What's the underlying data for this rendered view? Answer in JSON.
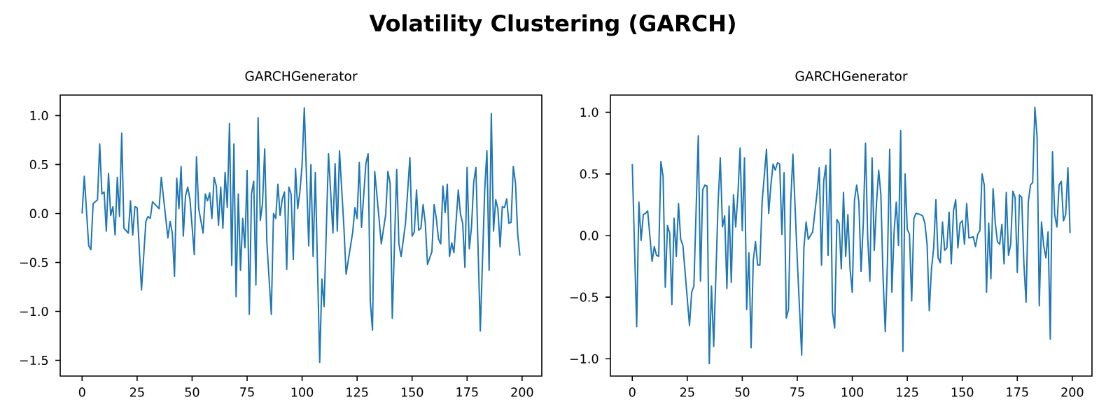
{
  "chart_data": [
    {
      "type": "line",
      "title": "GARCHGenerator",
      "annotations": [
        "Volatility Clustering (GARCH)"
      ],
      "color": "#1f77b4",
      "x": [
        0,
        1,
        3,
        4,
        5,
        7,
        8,
        9,
        10,
        11,
        12,
        13,
        14,
        15,
        16,
        17,
        18,
        19,
        21,
        22,
        23,
        24,
        25,
        27,
        29,
        30,
        31,
        32,
        35,
        36,
        39,
        40,
        41,
        42,
        43,
        44,
        45,
        46,
        47,
        48,
        49,
        51,
        52,
        53,
        55,
        56,
        57,
        58,
        59,
        60,
        61,
        62,
        63,
        64,
        65,
        66,
        67,
        68,
        69,
        70,
        71,
        72,
        73,
        74,
        75,
        76,
        77,
        78,
        79,
        80,
        81,
        82,
        83,
        84,
        86,
        87,
        88,
        89,
        90,
        91,
        92,
        93,
        94,
        95,
        96,
        97,
        98,
        99,
        100,
        101,
        103,
        104,
        105,
        106,
        108,
        109,
        110,
        112,
        114,
        115,
        116,
        117,
        119,
        120,
        123,
        124,
        125,
        126,
        127,
        129,
        130,
        131,
        132,
        133,
        134,
        136,
        138,
        139,
        140,
        141,
        143,
        144,
        145,
        147,
        149,
        150,
        151,
        152,
        153,
        154,
        155,
        156,
        157,
        159,
        160,
        161,
        162,
        163,
        164,
        165,
        166,
        167,
        168,
        169,
        171,
        172,
        173,
        174,
        175,
        176,
        177,
        178,
        179,
        181,
        183,
        184,
        185,
        186,
        187,
        188,
        189,
        190,
        191,
        192,
        193,
        194,
        195,
        196,
        197,
        198,
        199
      ],
      "values": [
        0.0,
        0.38,
        -0.33,
        -0.37,
        0.1,
        0.14,
        0.71,
        0.2,
        0.22,
        -0.18,
        0.41,
        -0.02,
        0.07,
        -0.22,
        0.37,
        -0.03,
        0.82,
        -0.15,
        -0.2,
        0.13,
        -0.22,
        0.07,
        0.06,
        -0.78,
        -0.08,
        -0.03,
        -0.05,
        0.12,
        0.05,
        0.37,
        -0.25,
        -0.08,
        -0.2,
        -0.64,
        0.36,
        0.05,
        0.48,
        -0.23,
        0.18,
        0.27,
        0.15,
        -0.42,
        0.58,
        0.05,
        -0.2,
        0.2,
        0.13,
        0.21,
        -0.05,
        0.37,
        0.28,
        -0.12,
        0.27,
        -0.15,
        0.42,
        0.06,
        0.92,
        -0.53,
        0.71,
        -0.85,
        0.2,
        -0.58,
        -0.05,
        -0.35,
        0.44,
        -1.03,
        0.2,
        0.33,
        -0.73,
        0.98,
        -0.07,
        0.1,
        0.66,
        -0.3,
        -1.03,
        0.0,
        -0.05,
        0.3,
        -0.02,
        0.15,
        0.22,
        -0.57,
        0.27,
        0.2,
        -0.47,
        0.46,
        0.05,
        0.22,
        0.5,
        1.08,
        -0.33,
        0.5,
        -0.44,
        0.42,
        -1.52,
        -0.67,
        -0.95,
        0.61,
        -0.2,
        0.51,
        -0.18,
        0.64,
        -0.14,
        -0.62,
        -0.19,
        0.06,
        -0.05,
        0.52,
        -0.14,
        0.51,
        0.61,
        -0.9,
        -1.19,
        0.43,
        0.19,
        -0.31,
        -0.01,
        0.43,
        0.31,
        -1.07,
        0.45,
        -0.31,
        -0.44,
        -0.1,
        0.57,
        -0.23,
        -0.19,
        0.24,
        -0.17,
        -0.15,
        0.09,
        -0.1,
        -0.52,
        -0.39,
        0.09,
        -0.05,
        -0.26,
        -0.31,
        0.28,
        0.01,
        0.3,
        -0.44,
        -0.3,
        -0.4,
        0.24,
        -0.01,
        -0.1,
        -0.55,
        0.47,
        -0.36,
        -0.14,
        0.32,
        0.47,
        -1.2,
        0.24,
        0.64,
        -0.58,
        1.02,
        -0.18,
        0.14,
        0.05,
        -0.34,
        0.07,
        0.06,
        0.15,
        -0.1,
        -0.09,
        0.48,
        0.31,
        -0.21,
        -0.43
      ],
      "xlim": [
        -9.95,
        208.95
      ],
      "ylim": [
        -1.66,
        1.21
      ],
      "xticks": [
        0,
        25,
        50,
        75,
        100,
        125,
        150,
        175,
        200
      ],
      "yticks": [
        {
          "value": -1.5,
          "label": "−1.5"
        },
        {
          "value": -1,
          "label": "−1.0"
        },
        {
          "value": -0.5,
          "label": "−0.5"
        },
        {
          "value": 0,
          "label": "0.0"
        },
        {
          "value": 0.5,
          "label": "0.5"
        },
        {
          "value": 1,
          "label": "1.0"
        }
      ]
    },
    {
      "type": "line",
      "title": "GARCHGenerator",
      "color": "#1f77b4",
      "x": [
        0,
        2,
        3,
        4,
        5,
        6,
        7,
        9,
        10,
        11,
        12,
        13,
        14,
        15,
        16,
        17,
        18,
        19,
        20,
        21,
        22,
        23,
        26,
        27,
        28,
        30,
        31,
        32,
        33,
        34,
        35,
        36,
        37,
        39,
        40,
        41,
        42,
        43,
        44,
        45,
        46,
        47,
        48,
        49,
        50,
        51,
        52,
        53,
        54,
        55,
        56,
        57,
        58,
        59,
        61,
        62,
        63,
        64,
        65,
        66,
        67,
        68,
        69,
        70,
        71,
        72,
        73,
        75,
        77,
        78,
        79,
        80,
        82,
        84,
        85,
        86,
        87,
        88,
        89,
        90,
        91,
        92,
        93,
        94,
        95,
        96,
        97,
        98,
        99,
        100,
        101,
        102,
        103,
        104,
        105,
        106,
        107,
        108,
        109,
        110,
        111,
        112,
        113,
        114,
        115,
        116,
        117,
        118,
        119,
        120,
        121,
        122,
        123,
        124,
        125,
        126,
        127,
        128,
        129,
        131,
        132,
        133,
        134,
        135,
        136,
        137,
        138,
        139,
        140,
        141,
        142,
        143,
        144,
        145,
        146,
        147,
        148,
        149,
        150,
        151,
        152,
        153,
        155,
        156,
        157,
        158,
        159,
        160,
        161,
        162,
        163,
        164,
        165,
        166,
        167,
        168,
        169,
        170,
        171,
        172,
        173,
        174,
        175,
        176,
        177,
        178,
        179,
        180,
        181,
        182,
        183,
        184,
        185,
        186,
        187,
        188,
        189,
        190,
        191,
        192,
        193,
        194,
        195,
        196,
        197,
        198,
        199
      ],
      "values": [
        0.58,
        -0.74,
        0.27,
        -0.04,
        0.17,
        0.18,
        0.2,
        -0.21,
        -0.09,
        -0.16,
        -0.17,
        0.6,
        0.48,
        -0.42,
        0.08,
        0.02,
        -0.56,
        0.14,
        -0.17,
        0.26,
        -0.03,
        -0.08,
        -0.73,
        -0.46,
        -0.41,
        0.81,
        -0.37,
        0.37,
        0.41,
        0.4,
        -1.04,
        -0.41,
        -0.9,
        0.26,
        0.63,
        0.07,
        0.16,
        -0.43,
        0.24,
        -0.38,
        0.33,
        0.07,
        0.33,
        0.71,
        0.04,
        0.63,
        -0.6,
        -0.14,
        -0.91,
        -0.2,
        -0.05,
        -0.24,
        -0.24,
        0.27,
        0.7,
        0.18,
        0.41,
        0.58,
        0.53,
        0.59,
        0.58,
        0.01,
        0.51,
        -0.67,
        -0.6,
        0.26,
        0.66,
        -0.2,
        -0.97,
        -0.1,
        0.11,
        -0.03,
        0.03,
        0.35,
        0.55,
        -0.24,
        0.44,
        0.57,
        -0.16,
        0.7,
        -0.62,
        -0.75,
        0.13,
        0.1,
        -0.27,
        0.35,
        -0.17,
        0.17,
        -0.27,
        -0.46,
        0.29,
        0.41,
        0.27,
        -0.29,
        0.1,
        0.75,
        -0.01,
        -0.37,
        0.63,
        -0.12,
        0.26,
        0.53,
        0.33,
        -0.35,
        -0.78,
        -0.2,
        0.7,
        -0.46,
        0.03,
        0.27,
        -0.08,
        0.85,
        -0.94,
        0.5,
        0.05,
        0.01,
        -0.53,
        0.14,
        0.18,
        0.17,
        0.16,
        0.1,
        -0.07,
        -0.61,
        -0.27,
        -0.1,
        0.29,
        -0.18,
        -0.22,
        0.11,
        -0.12,
        -0.1,
        0.19,
        -0.23,
        0.2,
        0.29,
        -0.1,
        0.1,
        0.12,
        -0.07,
        0.26,
        -0.02,
        -0.01,
        -0.09,
        0.01,
        0.04,
        0.5,
        0.41,
        -0.46,
        0.1,
        -0.35,
        0.38,
        0.1,
        -0.05,
        -0.07,
        0.09,
        -0.23,
        0.35,
        -0.16,
        -0.07,
        0.36,
        0.31,
        -0.3,
        0.33,
        0.31,
        -0.23,
        -0.54,
        0.27,
        0.41,
        0.43,
        1.04,
        0.8,
        -0.57,
        0.11,
        -0.08,
        -0.18,
        0.03,
        -0.84,
        0.68,
        0.17,
        0.07,
        0.41,
        0.44,
        0.12,
        0.17,
        0.55,
        0.02
      ],
      "xlim": [
        -9.95,
        208.95
      ],
      "ylim": [
        -1.14,
        1.14
      ],
      "xticks": [
        0,
        25,
        50,
        75,
        100,
        125,
        150,
        175,
        200
      ],
      "yticks": [
        {
          "value": -1,
          "label": "−1.0"
        },
        {
          "value": -0.5,
          "label": "−0.5"
        },
        {
          "value": 0,
          "label": "0.0"
        },
        {
          "value": 0.5,
          "label": "0.5"
        },
        {
          "value": 1,
          "label": "1.0"
        }
      ]
    }
  ]
}
